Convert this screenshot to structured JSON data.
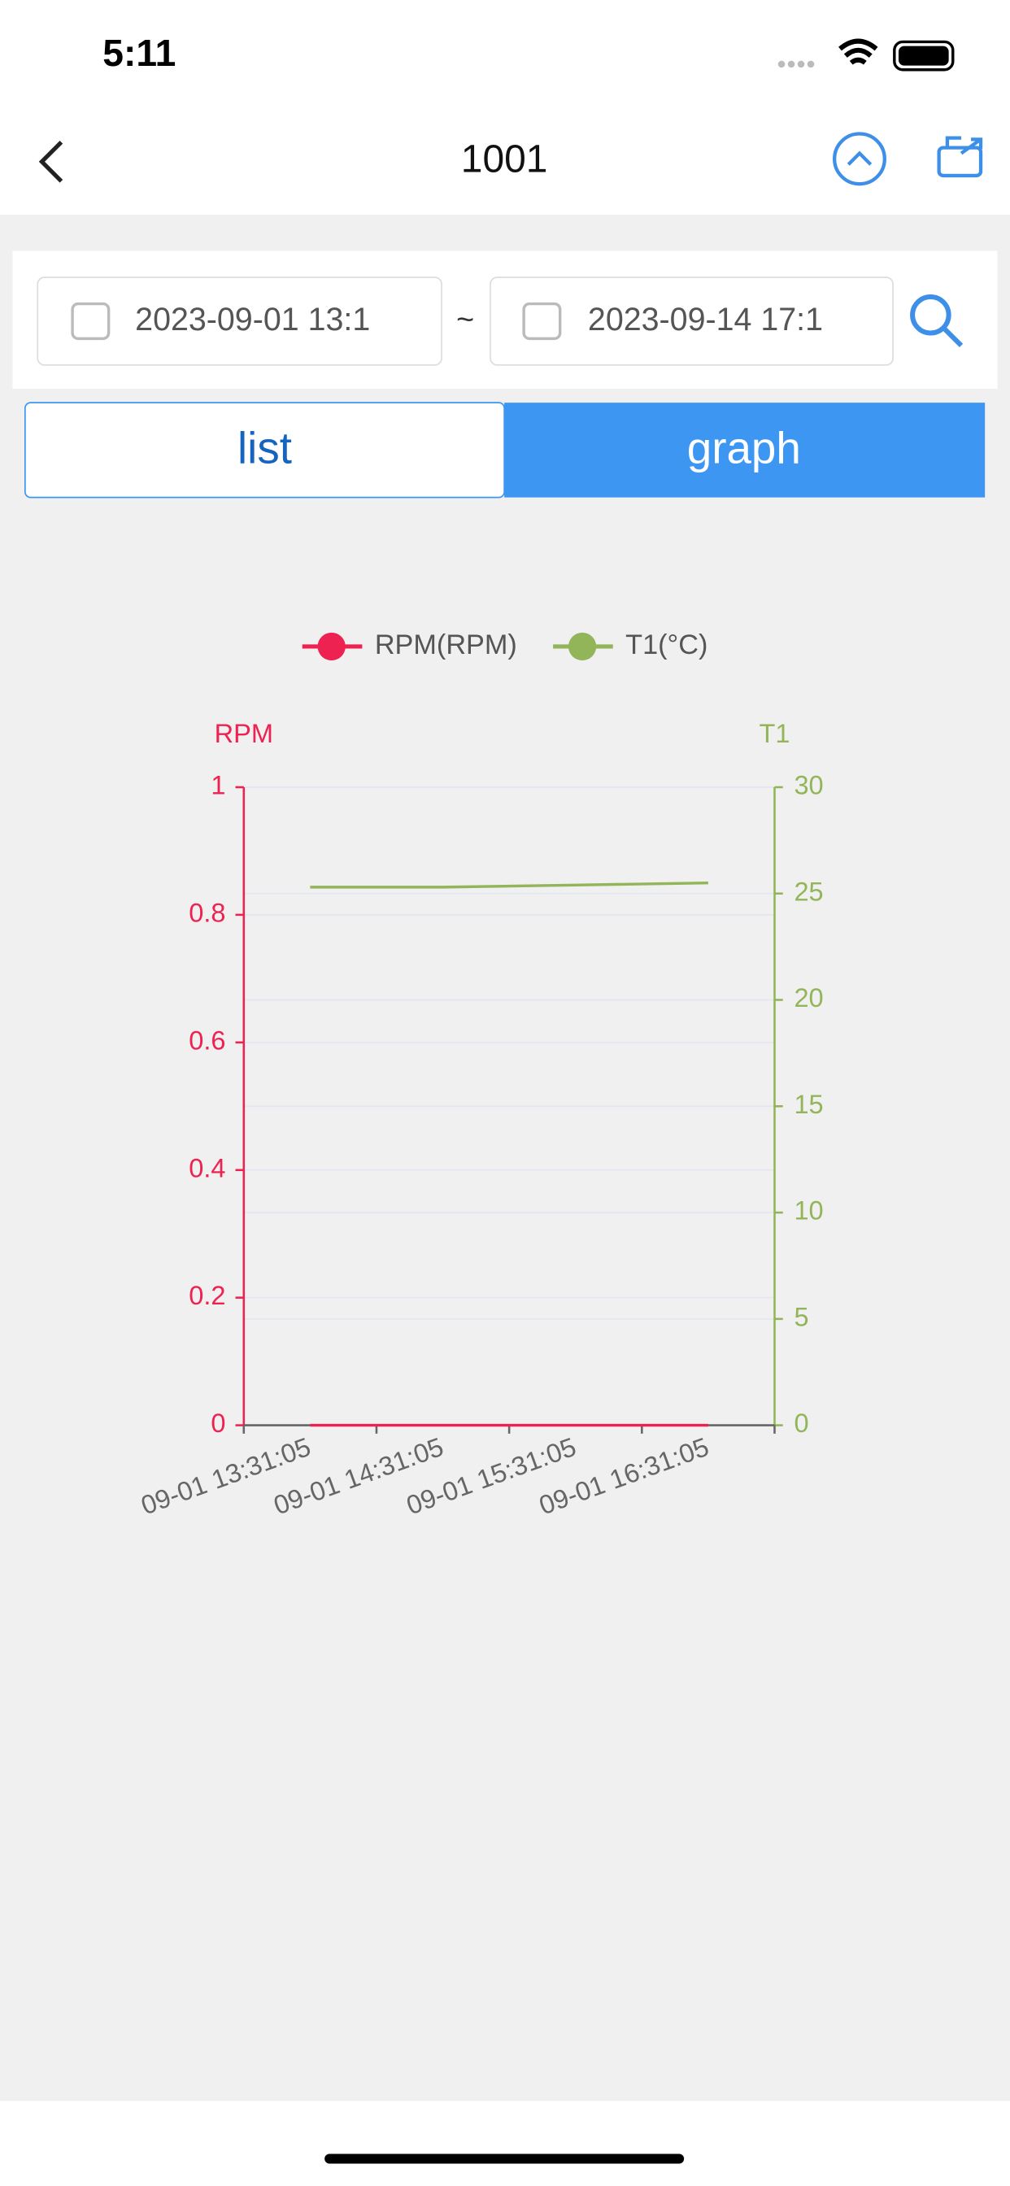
{
  "status_bar": {
    "time": "5:11"
  },
  "header": {
    "title": "1001"
  },
  "filter": {
    "start": "2023-09-01 13:1",
    "separator": "~",
    "end": "2023-09-14 17:1"
  },
  "tabs": [
    "list",
    "graph"
  ],
  "chart_data": {
    "type": "line",
    "categories": [
      "09-01 13:31:05",
      "09-01 14:31:05",
      "09-01 15:31:05",
      "09-01 16:31:05"
    ],
    "series": [
      {
        "name": "RPM(RPM)",
        "color": "#ee2250",
        "axis": "y",
        "values": [
          0,
          0,
          0,
          0
        ]
      },
      {
        "name": "T1(°C)",
        "color": "#93b55a",
        "axis": "y2",
        "values": [
          25.3,
          25.3,
          25.4,
          25.5
        ]
      }
    ],
    "ylabel": "RPM",
    "y2label": "T1",
    "ylim": [
      0,
      1
    ],
    "yticks": [
      0,
      0.2,
      0.4,
      0.6,
      0.8,
      1
    ],
    "y2lim": [
      0,
      30
    ],
    "y2ticks": [
      0,
      5,
      10,
      15,
      20,
      25,
      30
    ],
    "grid": true,
    "legend": "top"
  }
}
